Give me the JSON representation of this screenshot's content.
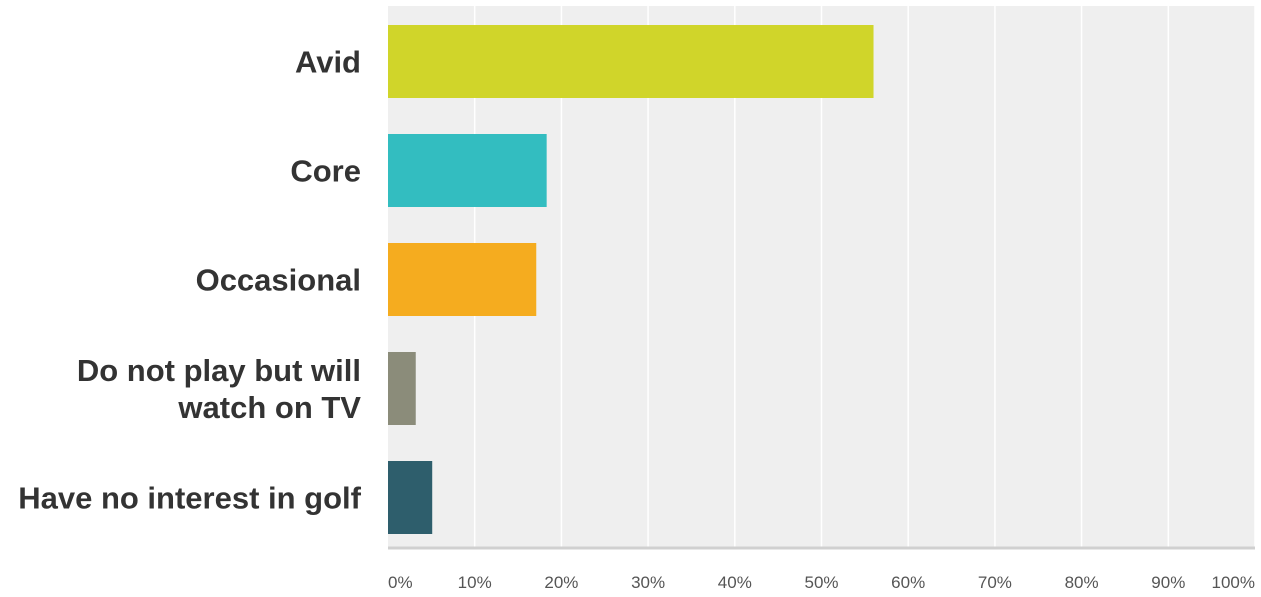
{
  "chart_data": {
    "type": "bar",
    "orientation": "horizontal",
    "categories": [
      [
        "Avid"
      ],
      [
        "Core"
      ],
      [
        "Occasional"
      ],
      [
        "Do not play but will",
        "watch on TV"
      ],
      [
        "Have no interest in golf"
      ]
    ],
    "values": [
      56,
      18.3,
      17.1,
      3.2,
      5.1
    ],
    "colors": [
      "#d0d52a",
      "#33bdc0",
      "#f5ac1f",
      "#8b8c7a",
      "#2e5e6c"
    ],
    "xlim": [
      0,
      100
    ],
    "x_ticks": [
      0,
      10,
      20,
      30,
      40,
      50,
      60,
      70,
      80,
      90,
      100
    ],
    "x_tick_labels": [
      "0%",
      "10%",
      "20%",
      "30%",
      "40%",
      "50%",
      "60%",
      "70%",
      "80%",
      "90%",
      "100%"
    ],
    "grid": true,
    "background": "#efefef",
    "title": "",
    "xlabel": "",
    "ylabel": ""
  }
}
